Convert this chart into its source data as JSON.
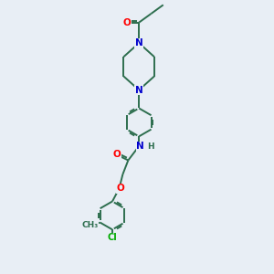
{
  "background_color": "#e8eef5",
  "bond_color": "#2d6e4e",
  "atom_colors": {
    "O": "#ff0000",
    "N": "#0000cc",
    "Cl": "#00aa00",
    "C": "#2d6e4e",
    "H": "#2d6e4e"
  },
  "figsize": [
    3.0,
    3.0
  ],
  "dpi": 100
}
